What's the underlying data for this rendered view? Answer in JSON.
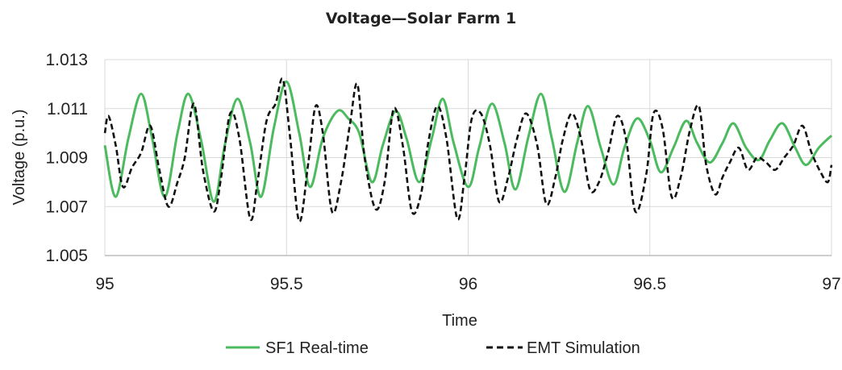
{
  "chart_data": {
    "type": "line",
    "title": "Voltage—Solar Farm 1",
    "xlabel": "Time",
    "ylabel": "Voltage (p.u.)",
    "xlim": [
      95,
      97
    ],
    "ylim": [
      1.005,
      1.013
    ],
    "x_ticks": [
      "95",
      "95.5",
      "96",
      "96.5",
      "97"
    ],
    "y_ticks": [
      "1.005",
      "1.007",
      "1.009",
      "1.011",
      "1.013"
    ],
    "grid": true,
    "legend_position": "bottom",
    "series": [
      {
        "name": "SF1 Real-time",
        "color": "#4cbb5f",
        "style": "solid",
        "x": [
          95.0,
          95.03,
          95.065,
          95.1,
          95.13,
          95.165,
          95.2,
          95.23,
          95.265,
          95.3,
          95.33,
          95.365,
          95.4,
          95.43,
          95.465,
          95.5,
          95.535,
          95.565,
          95.6,
          95.64,
          95.67,
          95.7,
          95.735,
          95.765,
          95.8,
          95.83,
          95.865,
          95.9,
          95.93,
          95.96,
          96.0,
          96.03,
          96.065,
          96.1,
          96.13,
          96.165,
          96.2,
          96.23,
          96.265,
          96.3,
          96.33,
          96.365,
          96.4,
          96.43,
          96.465,
          96.5,
          96.53,
          96.565,
          96.6,
          96.63,
          96.665,
          96.7,
          96.73,
          96.765,
          96.8,
          96.83,
          96.865,
          96.9,
          96.93,
          96.965,
          97.0
        ],
        "y": [
          1.0095,
          1.0074,
          1.0098,
          1.0116,
          1.0098,
          1.0074,
          1.01,
          1.0116,
          1.0097,
          1.0072,
          1.0095,
          1.0114,
          1.0096,
          1.0074,
          1.0102,
          1.0121,
          1.01,
          1.0078,
          1.0098,
          1.0109,
          1.0106,
          1.01,
          1.008,
          1.0095,
          1.0109,
          1.0098,
          1.008,
          1.0098,
          1.0114,
          1.0096,
          1.0078,
          1.0094,
          1.0112,
          1.0096,
          1.0077,
          1.0098,
          1.0116,
          1.0098,
          1.0076,
          1.0096,
          1.0111,
          1.0094,
          1.0079,
          1.0094,
          1.0106,
          1.0097,
          1.0084,
          1.0094,
          1.0105,
          1.0096,
          1.0088,
          1.0096,
          1.0104,
          1.0094,
          1.0089,
          1.0097,
          1.0104,
          1.0094,
          1.0087,
          1.0094,
          1.0099
        ]
      },
      {
        "name": "EMT Simulation",
        "color": "#111111",
        "style": "dashed",
        "x": [
          95.0,
          95.01,
          95.03,
          95.05,
          95.075,
          95.1,
          95.125,
          95.15,
          95.175,
          95.2,
          95.22,
          95.245,
          95.27,
          95.3,
          95.32,
          95.345,
          95.37,
          95.4,
          95.42,
          95.445,
          95.47,
          95.49,
          95.51,
          95.535,
          95.56,
          95.58,
          95.6,
          95.625,
          95.65,
          95.675,
          95.695,
          95.715,
          95.745,
          95.77,
          95.795,
          95.82,
          95.845,
          95.87,
          95.89,
          95.915,
          95.94,
          95.97,
          95.99,
          96.01,
          96.035,
          96.06,
          96.085,
          96.11,
          96.135,
          96.16,
          96.19,
          96.215,
          96.24,
          96.26,
          96.285,
          96.31,
          96.335,
          96.36,
          96.385,
          96.41,
          96.435,
          96.46,
          96.49,
          96.51,
          96.535,
          96.56,
          96.585,
          96.61,
          96.635,
          96.655,
          96.68,
          96.7,
          96.72,
          96.745,
          96.77,
          96.795,
          96.82,
          96.845,
          96.87,
          96.895,
          96.92,
          96.945,
          96.97,
          96.99,
          97.0
        ],
        "y": [
          1.01,
          1.0107,
          1.0095,
          1.0078,
          1.0086,
          1.0092,
          1.0103,
          1.0085,
          1.007,
          1.008,
          1.009,
          1.0112,
          1.0085,
          1.0068,
          1.0082,
          1.0108,
          1.0098,
          1.0065,
          1.008,
          1.0105,
          1.0112,
          1.0122,
          1.0098,
          1.0064,
          1.0088,
          1.0111,
          1.01,
          1.0068,
          1.008,
          1.0104,
          1.012,
          1.009,
          1.0069,
          1.008,
          1.011,
          1.0095,
          1.0068,
          1.0075,
          1.0096,
          1.0111,
          1.0098,
          1.0065,
          1.0082,
          1.0106,
          1.0108,
          1.0095,
          1.0072,
          1.0082,
          1.0098,
          1.0108,
          1.0095,
          1.0071,
          1.0082,
          1.0097,
          1.0108,
          1.0098,
          1.0077,
          1.008,
          1.0092,
          1.0107,
          1.0097,
          1.0068,
          1.0083,
          1.0108,
          1.0102,
          1.0074,
          1.0082,
          1.0101,
          1.0111,
          1.0087,
          1.0075,
          1.0082,
          1.0088,
          1.0094,
          1.0085,
          1.009,
          1.0088,
          1.0085,
          1.009,
          1.0095,
          1.0103,
          1.0092,
          1.0084,
          1.008,
          1.0087
        ]
      }
    ]
  }
}
